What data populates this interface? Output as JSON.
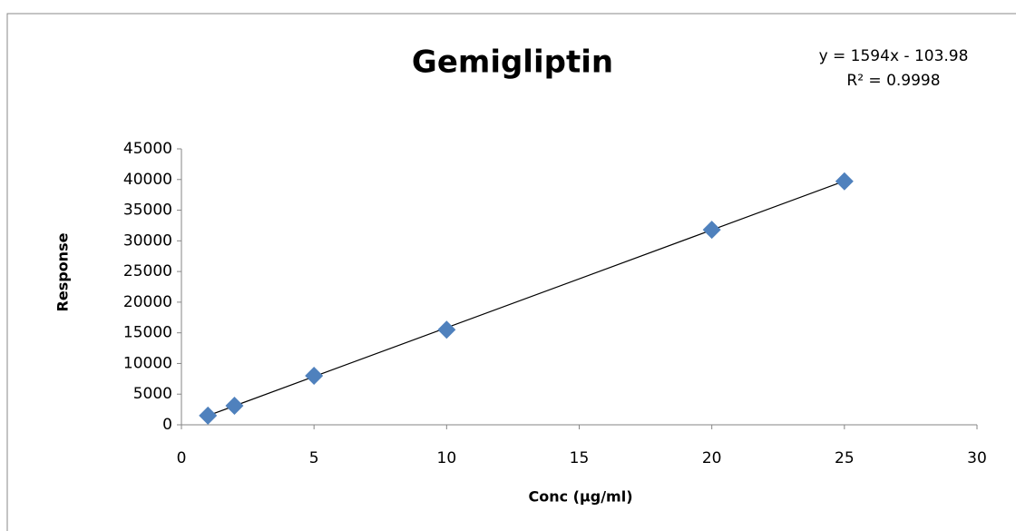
{
  "chart_data": {
    "type": "scatter",
    "title": "Gemigliptin",
    "x_label": "Conc (µg/ml)",
    "y_label": "Response",
    "series": [
      {
        "name": "Response",
        "color": "#4f81bd",
        "x": [
          1,
          2,
          5,
          10,
          20,
          25
        ],
        "values": [
          1500,
          3100,
          8000,
          15500,
          31800,
          39700
        ]
      }
    ],
    "trendline": {
      "label": "y = 1594x - 103.98",
      "r2_label": "R² = 0.9998",
      "slope": 1594,
      "intercept": -103.98,
      "color": "#000000"
    },
    "xlim": [
      0,
      30
    ],
    "xticks": [
      0,
      5,
      10,
      15,
      20,
      25,
      30
    ],
    "ylim": [
      0,
      45000
    ],
    "yticks": [
      0,
      5000,
      10000,
      15000,
      20000,
      25000,
      30000,
      35000,
      40000,
      45000
    ],
    "grid": false
  }
}
